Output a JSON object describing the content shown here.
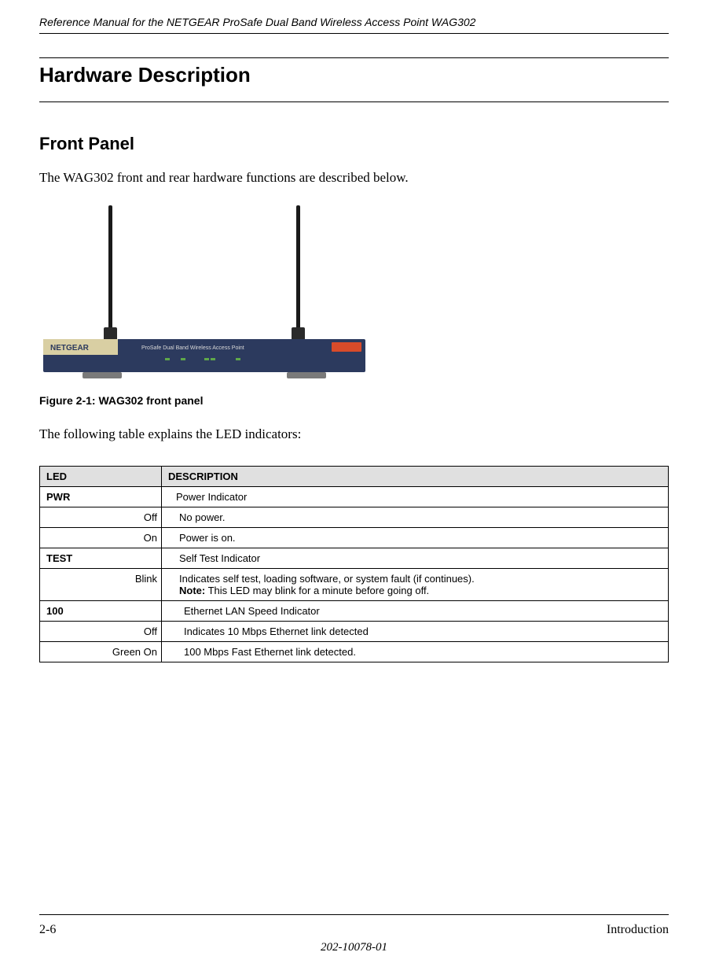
{
  "header": {
    "title": "Reference Manual for the NETGEAR ProSafe Dual Band Wireless Access Point WAG302"
  },
  "section": {
    "title": "Hardware Description"
  },
  "subsection": {
    "title": "Front Panel",
    "intro": "The WAG302 front and rear hardware functions are described below.",
    "figure_caption": "Figure 2-1:  WAG302 front panel",
    "table_intro": "The following table explains the LED indicators:"
  },
  "table": {
    "headers": {
      "led": "LED",
      "description": "DESCRIPTION"
    },
    "rows": [
      {
        "led": "PWR",
        "led_bold": true,
        "led_align": "left",
        "desc": "Power Indicator",
        "indent": 1
      },
      {
        "led": "Off",
        "led_bold": false,
        "led_align": "right",
        "desc": "No power.",
        "indent": 2
      },
      {
        "led": "On",
        "led_bold": false,
        "led_align": "right",
        "desc": "Power is on.",
        "indent": 2
      },
      {
        "led": "TEST",
        "led_bold": true,
        "led_align": "left",
        "desc": "Self Test Indicator",
        "indent": 2
      },
      {
        "led": "Blink",
        "led_bold": false,
        "led_align": "right",
        "desc": "Indicates self test, loading software, or system fault (if continues).",
        "note_label": "Note:",
        "note_text": " This LED may blink for a minute before going off.",
        "indent": 2
      },
      {
        "led": "100",
        "led_bold": true,
        "led_align": "left",
        "desc": "Ethernet LAN Speed Indicator",
        "indent": 3
      },
      {
        "led": "Off",
        "led_bold": false,
        "led_align": "right",
        "desc": "Indicates 10 Mbps Ethernet link detected",
        "indent": 3
      },
      {
        "led": "Green On",
        "led_bold": false,
        "led_align": "right",
        "desc": "100 Mbps Fast Ethernet link detected.",
        "indent": 3
      }
    ]
  },
  "footer": {
    "page": "2-6",
    "chapter": "Introduction",
    "docnum": "202-10078-01"
  },
  "device_illustration": {
    "body_color": "#2c3a5e",
    "stand_color": "#7a7a7a",
    "antenna_color": "#1a1a1a",
    "label_bg": "#d9cfa3",
    "accent_color": "#d84b2a",
    "brand_text": "NETGEAR",
    "model_text": "ProSafe Dual Band Wireless Access Point"
  }
}
